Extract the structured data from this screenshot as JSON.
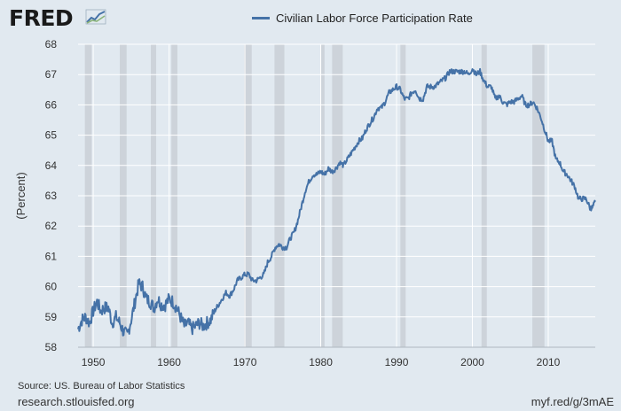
{
  "branding": {
    "logo_text": "FRED",
    "logo_graph_icon": "trend-graph-icon",
    "site": "research.stlouisfed.org",
    "shortlink": "myf.red/g/3mAE"
  },
  "source": "Source: US. Bureau of Labor Statistics",
  "chart_data": {
    "type": "line",
    "title": "",
    "xlabel": "",
    "ylabel": "(Percent)",
    "xlim": [
      1948,
      2016.2
    ],
    "ylim": [
      58,
      68
    ],
    "x_ticks": [
      "1950",
      "1960",
      "1970",
      "1980",
      "1990",
      "2000",
      "2010"
    ],
    "y_ticks": [
      "58",
      "59",
      "60",
      "61",
      "62",
      "63",
      "64",
      "65",
      "66",
      "67",
      "68"
    ],
    "grid": true,
    "legend_position": "top-center",
    "recessions": [
      [
        1948.9,
        1949.8
      ],
      [
        1953.5,
        1954.4
      ],
      [
        1957.6,
        1958.3
      ],
      [
        1960.3,
        1961.1
      ],
      [
        1969.9,
        1970.9
      ],
      [
        1973.9,
        1975.2
      ],
      [
        1980.0,
        1980.5
      ],
      [
        1981.5,
        1982.9
      ],
      [
        1990.5,
        1991.2
      ],
      [
        2001.2,
        2001.9
      ],
      [
        2007.9,
        2009.5
      ]
    ],
    "colors": {
      "line": "#4572a7",
      "recession": "#cdd3da",
      "background": "#e1e9f0",
      "grid": "#ffffff"
    },
    "series": [
      {
        "name": "Civilian Labor Force Participation Rate",
        "x": [
          1948.0,
          1948.5,
          1949.0,
          1949.5,
          1950.0,
          1950.5,
          1951.0,
          1951.5,
          1952.0,
          1952.5,
          1953.0,
          1953.5,
          1954.0,
          1954.5,
          1955.0,
          1955.5,
          1956.0,
          1956.5,
          1957.0,
          1957.5,
          1958.0,
          1958.5,
          1959.0,
          1959.5,
          1960.0,
          1960.5,
          1961.0,
          1961.5,
          1962.0,
          1962.5,
          1963.0,
          1963.5,
          1964.0,
          1964.5,
          1965.0,
          1965.5,
          1966.0,
          1966.5,
          1967.0,
          1967.5,
          1968.0,
          1968.5,
          1969.0,
          1969.5,
          1970.0,
          1970.5,
          1971.0,
          1971.5,
          1972.0,
          1972.5,
          1973.0,
          1973.5,
          1974.0,
          1974.5,
          1975.0,
          1975.5,
          1976.0,
          1976.5,
          1977.0,
          1977.5,
          1978.0,
          1978.5,
          1979.0,
          1979.5,
          1980.0,
          1980.5,
          1981.0,
          1981.5,
          1982.0,
          1982.5,
          1983.0,
          1983.5,
          1984.0,
          1984.5,
          1985.0,
          1985.5,
          1986.0,
          1986.5,
          1987.0,
          1987.5,
          1988.0,
          1988.5,
          1989.0,
          1989.5,
          1990.0,
          1990.5,
          1991.0,
          1991.5,
          1992.0,
          1992.5,
          1993.0,
          1993.5,
          1994.0,
          1994.5,
          1995.0,
          1995.5,
          1996.0,
          1996.5,
          1997.0,
          1997.5,
          1998.0,
          1998.5,
          1999.0,
          1999.5,
          2000.0,
          2000.5,
          2001.0,
          2001.5,
          2002.0,
          2002.5,
          2003.0,
          2003.5,
          2004.0,
          2004.5,
          2005.0,
          2005.5,
          2006.0,
          2006.5,
          2007.0,
          2007.5,
          2008.0,
          2008.5,
          2009.0,
          2009.5,
          2010.0,
          2010.5,
          2011.0,
          2011.5,
          2012.0,
          2012.5,
          2013.0,
          2013.5,
          2014.0,
          2014.5,
          2015.0,
          2015.5,
          2015.8,
          2016.2
        ],
        "values": [
          58.6,
          58.9,
          59.0,
          58.8,
          59.2,
          59.5,
          59.2,
          59.3,
          59.3,
          58.8,
          59.0,
          58.8,
          58.5,
          58.4,
          58.9,
          59.5,
          60.1,
          60.0,
          59.6,
          59.5,
          59.3,
          59.6,
          59.4,
          59.4,
          59.6,
          59.5,
          59.3,
          59.0,
          58.7,
          58.8,
          58.6,
          58.7,
          58.8,
          58.7,
          58.8,
          58.9,
          59.2,
          59.4,
          59.6,
          59.8,
          59.7,
          59.9,
          60.2,
          60.3,
          60.4,
          60.4,
          60.2,
          60.2,
          60.3,
          60.4,
          60.8,
          61.0,
          61.3,
          61.4,
          61.3,
          61.3,
          61.6,
          61.8,
          62.2,
          62.7,
          63.2,
          63.5,
          63.7,
          63.7,
          63.8,
          63.7,
          63.9,
          63.8,
          63.9,
          64.1,
          64.0,
          64.2,
          64.4,
          64.6,
          64.8,
          64.9,
          65.2,
          65.4,
          65.6,
          65.9,
          65.9,
          66.1,
          66.4,
          66.5,
          66.6,
          66.5,
          66.2,
          66.2,
          66.4,
          66.5,
          66.2,
          66.2,
          66.6,
          66.6,
          66.6,
          66.7,
          66.8,
          66.9,
          67.1,
          67.1,
          67.1,
          67.1,
          67.1,
          67.0,
          67.2,
          67.0,
          67.1,
          66.8,
          66.6,
          66.6,
          66.2,
          66.3,
          66.1,
          66.0,
          66.1,
          66.1,
          66.2,
          66.3,
          66.0,
          66.0,
          66.1,
          65.9,
          65.6,
          65.2,
          64.8,
          64.8,
          64.2,
          64.1,
          63.8,
          63.7,
          63.5,
          63.3,
          62.9,
          62.9,
          62.9,
          62.6,
          62.6,
          62.8
        ]
      }
    ]
  }
}
